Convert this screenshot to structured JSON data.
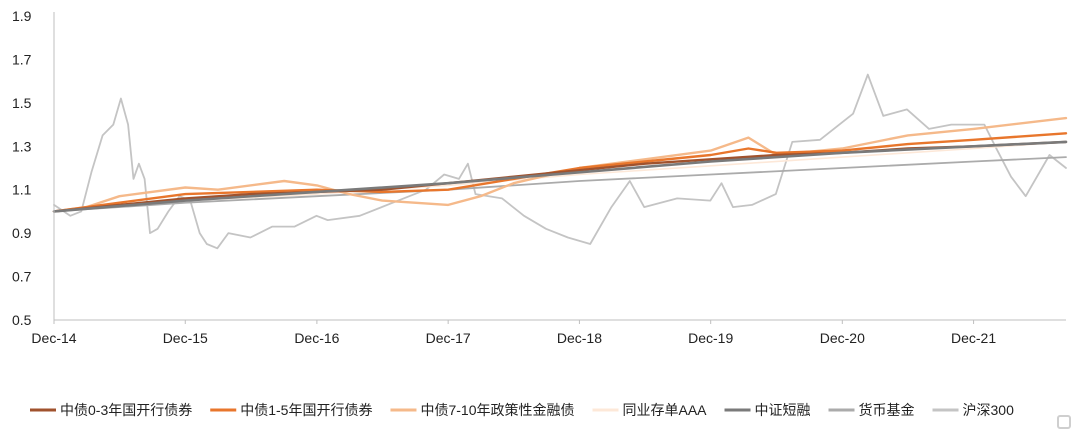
{
  "chart_data": {
    "type": "line",
    "title": "",
    "xlabel": "",
    "ylabel": "",
    "ylim": [
      0.5,
      1.9
    ],
    "yticks": [
      "0.5",
      "0.7",
      "0.9",
      "1.1",
      "1.3",
      "1.5",
      "1.7",
      "1.9"
    ],
    "xlim": [
      "2014-12-01",
      "2022-08-15"
    ],
    "xticks": [
      {
        "label": "Dec-14",
        "date": "2014-12-01"
      },
      {
        "label": "Dec-15",
        "date": "2015-12-01"
      },
      {
        "label": "Dec-16",
        "date": "2016-12-01"
      },
      {
        "label": "Dec-17",
        "date": "2017-12-01"
      },
      {
        "label": "Dec-18",
        "date": "2018-12-01"
      },
      {
        "label": "Dec-19",
        "date": "2019-12-01"
      },
      {
        "label": "Dec-20",
        "date": "2020-12-01"
      },
      {
        "label": "Dec-21",
        "date": "2021-12-01"
      }
    ],
    "legend_position": "bottom",
    "grid": false,
    "series": [
      {
        "name": "中债0-3年国开行债券",
        "color": "#a0522d",
        "width": 2.4,
        "points": [
          [
            "2014-12-01",
            1.0
          ],
          [
            "2015-06-01",
            1.03
          ],
          [
            "2015-12-01",
            1.06
          ],
          [
            "2016-06-01",
            1.08
          ],
          [
            "2016-12-01",
            1.09
          ],
          [
            "2017-06-01",
            1.1
          ],
          [
            "2017-12-01",
            1.13
          ],
          [
            "2018-06-01",
            1.16
          ],
          [
            "2018-12-01",
            1.19
          ],
          [
            "2019-06-01",
            1.22
          ],
          [
            "2019-12-01",
            1.24
          ],
          [
            "2020-06-01",
            1.26
          ],
          [
            "2020-12-01",
            1.27
          ],
          [
            "2021-06-01",
            1.29
          ],
          [
            "2021-12-01",
            1.3
          ],
          [
            "2022-08-15",
            1.32
          ]
        ]
      },
      {
        "name": "中债1-5年国开行债券",
        "color": "#e8762c",
        "width": 2.4,
        "points": [
          [
            "2014-12-01",
            1.0
          ],
          [
            "2015-06-01",
            1.04
          ],
          [
            "2015-12-01",
            1.08
          ],
          [
            "2016-06-01",
            1.09
          ],
          [
            "2016-12-01",
            1.1
          ],
          [
            "2017-06-01",
            1.09
          ],
          [
            "2017-12-01",
            1.1
          ],
          [
            "2018-06-01",
            1.15
          ],
          [
            "2018-12-01",
            1.2
          ],
          [
            "2019-06-01",
            1.23
          ],
          [
            "2019-12-01",
            1.26
          ],
          [
            "2020-03-15",
            1.29
          ],
          [
            "2020-06-01",
            1.27
          ],
          [
            "2020-12-01",
            1.28
          ],
          [
            "2021-06-01",
            1.31
          ],
          [
            "2021-12-01",
            1.33
          ],
          [
            "2022-08-15",
            1.36
          ]
        ]
      },
      {
        "name": "中债7-10年政策性金融债",
        "color": "#f5b98a",
        "width": 2.4,
        "points": [
          [
            "2014-12-01",
            1.0
          ],
          [
            "2015-03-01",
            1.02
          ],
          [
            "2015-06-01",
            1.07
          ],
          [
            "2015-12-01",
            1.11
          ],
          [
            "2016-03-01",
            1.1
          ],
          [
            "2016-09-01",
            1.14
          ],
          [
            "2016-12-01",
            1.12
          ],
          [
            "2017-03-01",
            1.08
          ],
          [
            "2017-06-01",
            1.05
          ],
          [
            "2017-12-01",
            1.03
          ],
          [
            "2018-03-01",
            1.07
          ],
          [
            "2018-06-01",
            1.13
          ],
          [
            "2018-12-01",
            1.2
          ],
          [
            "2019-06-01",
            1.24
          ],
          [
            "2019-12-01",
            1.28
          ],
          [
            "2020-03-15",
            1.34
          ],
          [
            "2020-06-01",
            1.26
          ],
          [
            "2020-12-01",
            1.29
          ],
          [
            "2021-06-01",
            1.35
          ],
          [
            "2021-12-01",
            1.38
          ],
          [
            "2022-08-15",
            1.43
          ]
        ]
      },
      {
        "name": "同业存单AAA",
        "color": "#fde8d8",
        "width": 1.6,
        "points": [
          [
            "2014-12-01",
            1.0
          ],
          [
            "2015-12-01",
            1.05
          ],
          [
            "2016-12-01",
            1.08
          ],
          [
            "2017-12-01",
            1.12
          ],
          [
            "2018-12-01",
            1.17
          ],
          [
            "2019-12-01",
            1.21
          ],
          [
            "2020-12-01",
            1.25
          ],
          [
            "2021-12-01",
            1.29
          ],
          [
            "2022-08-15",
            1.32
          ]
        ]
      },
      {
        "name": "中证短融",
        "color": "#7a7a7a",
        "width": 2.6,
        "points": [
          [
            "2014-12-01",
            1.0
          ],
          [
            "2015-12-01",
            1.05
          ],
          [
            "2016-12-01",
            1.09
          ],
          [
            "2017-12-01",
            1.13
          ],
          [
            "2018-12-01",
            1.18
          ],
          [
            "2019-12-01",
            1.23
          ],
          [
            "2020-12-01",
            1.27
          ],
          [
            "2021-12-01",
            1.3
          ],
          [
            "2022-08-15",
            1.32
          ]
        ]
      },
      {
        "name": "货币基金",
        "color": "#ababab",
        "width": 1.8,
        "points": [
          [
            "2014-12-01",
            1.0
          ],
          [
            "2015-12-01",
            1.04
          ],
          [
            "2016-12-01",
            1.07
          ],
          [
            "2017-12-01",
            1.1
          ],
          [
            "2018-12-01",
            1.14
          ],
          [
            "2019-12-01",
            1.17
          ],
          [
            "2020-12-01",
            1.2
          ],
          [
            "2021-12-01",
            1.23
          ],
          [
            "2022-08-15",
            1.25
          ]
        ]
      },
      {
        "name": "沪深300",
        "color": "#c4c4c4",
        "width": 1.8,
        "points": [
          [
            "2014-12-01",
            1.03
          ],
          [
            "2015-01-15",
            0.98
          ],
          [
            "2015-02-15",
            1.0
          ],
          [
            "2015-03-15",
            1.18
          ],
          [
            "2015-04-15",
            1.35
          ],
          [
            "2015-05-15",
            1.4
          ],
          [
            "2015-06-05",
            1.52
          ],
          [
            "2015-06-25",
            1.4
          ],
          [
            "2015-07-10",
            1.15
          ],
          [
            "2015-07-25",
            1.22
          ],
          [
            "2015-08-10",
            1.15
          ],
          [
            "2015-08-25",
            0.9
          ],
          [
            "2015-09-15",
            0.92
          ],
          [
            "2015-10-15",
            1.0
          ],
          [
            "2015-11-15",
            1.07
          ],
          [
            "2015-12-15",
            1.05
          ],
          [
            "2016-01-10",
            0.9
          ],
          [
            "2016-01-30",
            0.85
          ],
          [
            "2016-02-28",
            0.83
          ],
          [
            "2016-03-30",
            0.9
          ],
          [
            "2016-05-30",
            0.88
          ],
          [
            "2016-07-30",
            0.93
          ],
          [
            "2016-09-30",
            0.93
          ],
          [
            "2016-11-30",
            0.98
          ],
          [
            "2016-12-31",
            0.96
          ],
          [
            "2017-03-30",
            0.98
          ],
          [
            "2017-06-30",
            1.04
          ],
          [
            "2017-09-30",
            1.1
          ],
          [
            "2017-11-20",
            1.17
          ],
          [
            "2017-12-31",
            1.15
          ],
          [
            "2018-01-25",
            1.22
          ],
          [
            "2018-02-15",
            1.08
          ],
          [
            "2018-04-30",
            1.06
          ],
          [
            "2018-06-30",
            0.98
          ],
          [
            "2018-08-30",
            0.92
          ],
          [
            "2018-10-30",
            0.88
          ],
          [
            "2018-12-31",
            0.85
          ],
          [
            "2019-02-28",
            1.02
          ],
          [
            "2019-04-20",
            1.14
          ],
          [
            "2019-05-30",
            1.02
          ],
          [
            "2019-08-30",
            1.06
          ],
          [
            "2019-11-30",
            1.05
          ],
          [
            "2019-12-31",
            1.13
          ],
          [
            "2020-02-01",
            1.02
          ],
          [
            "2020-03-25",
            1.03
          ],
          [
            "2020-05-30",
            1.08
          ],
          [
            "2020-07-15",
            1.32
          ],
          [
            "2020-09-30",
            1.33
          ],
          [
            "2020-12-31",
            1.45
          ],
          [
            "2021-02-10",
            1.63
          ],
          [
            "2021-03-25",
            1.44
          ],
          [
            "2021-05-30",
            1.47
          ],
          [
            "2021-07-30",
            1.38
          ],
          [
            "2021-09-30",
            1.4
          ],
          [
            "2021-12-31",
            1.4
          ],
          [
            "2022-01-30",
            1.3
          ],
          [
            "2022-03-15",
            1.16
          ],
          [
            "2022-04-25",
            1.07
          ],
          [
            "2022-06-30",
            1.26
          ],
          [
            "2022-08-15",
            1.2
          ]
        ]
      }
    ]
  }
}
